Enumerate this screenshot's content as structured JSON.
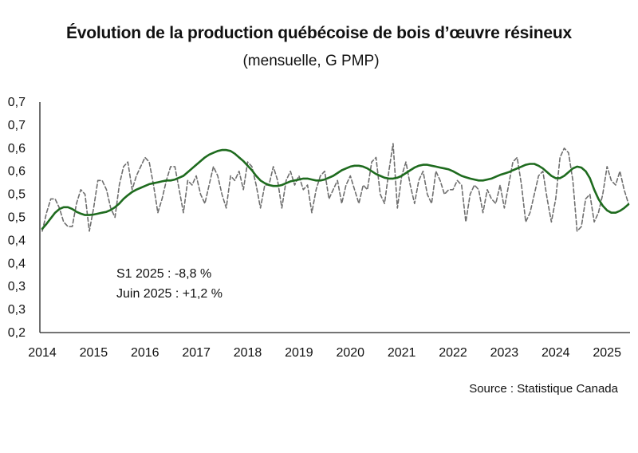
{
  "chart_data": {
    "type": "line",
    "title": "Évolution de la production québécoise de bois d’œuvre résineux",
    "subtitle": "(mensuelle, G PMP)",
    "xlabel": "",
    "ylabel": "",
    "ytick_values": [
      0.2,
      0.25,
      0.3,
      0.35,
      0.4,
      0.45,
      0.5,
      0.55,
      0.6,
      0.65,
      0.7
    ],
    "ytick_labels": [
      "0,2",
      "0,3",
      "0,3",
      "0,4",
      "0,4",
      "0,5",
      "0,5",
      "0,6",
      "0,6",
      "0,7",
      "0,7"
    ],
    "xtick_labels": [
      "2014",
      "2015",
      "2016",
      "2017",
      "2018",
      "2019",
      "2020",
      "2021",
      "2022",
      "2023",
      "2024",
      "2025"
    ],
    "ylim": [
      0.2,
      0.7
    ],
    "xlim": [
      "2014-01",
      "2025-06"
    ],
    "grid": false,
    "legend": "none",
    "annotations": [
      "S1 2025 : -8,8 %",
      "Juin 2025 : +1,2 %"
    ],
    "source": "Source : Statistique Canada",
    "series": [
      {
        "style": "dashed",
        "color": "#6e6e6e",
        "x_start": "2014-01",
        "frequency": "monthly",
        "values": [
          0.42,
          0.46,
          0.49,
          0.49,
          0.47,
          0.44,
          0.43,
          0.43,
          0.48,
          0.51,
          0.5,
          0.42,
          0.47,
          0.53,
          0.53,
          0.51,
          0.47,
          0.45,
          0.52,
          0.56,
          0.57,
          0.51,
          0.54,
          0.56,
          0.58,
          0.57,
          0.52,
          0.46,
          0.49,
          0.53,
          0.56,
          0.56,
          0.51,
          0.46,
          0.53,
          0.52,
          0.54,
          0.5,
          0.48,
          0.52,
          0.56,
          0.54,
          0.5,
          0.47,
          0.54,
          0.53,
          0.55,
          0.51,
          0.57,
          0.56,
          0.52,
          0.47,
          0.52,
          0.52,
          0.56,
          0.53,
          0.47,
          0.53,
          0.55,
          0.52,
          0.54,
          0.51,
          0.52,
          0.46,
          0.51,
          0.54,
          0.55,
          0.49,
          0.51,
          0.53,
          0.48,
          0.52,
          0.54,
          0.51,
          0.48,
          0.52,
          0.51,
          0.57,
          0.58,
          0.5,
          0.48,
          0.55,
          0.61,
          0.47,
          0.54,
          0.57,
          0.52,
          0.48,
          0.53,
          0.55,
          0.5,
          0.48,
          0.55,
          0.53,
          0.5,
          0.51,
          0.51,
          0.53,
          0.52,
          0.44,
          0.5,
          0.52,
          0.51,
          0.46,
          0.51,
          0.49,
          0.48,
          0.52,
          0.47,
          0.52,
          0.57,
          0.58,
          0.52,
          0.44,
          0.46,
          0.5,
          0.54,
          0.55,
          0.49,
          0.44,
          0.49,
          0.58,
          0.6,
          0.59,
          0.53,
          0.42,
          0.43,
          0.49,
          0.5,
          0.44,
          0.46,
          0.5,
          0.56,
          0.53,
          0.52,
          0.55,
          0.51,
          0.48
        ]
      },
      {
        "style": "solid",
        "color": "#1e6b1e",
        "x_start": "2014-01",
        "frequency": "monthly",
        "values": [
          0.425,
          0.436,
          0.448,
          0.46,
          0.468,
          0.472,
          0.472,
          0.468,
          0.462,
          0.458,
          0.455,
          0.455,
          0.456,
          0.458,
          0.46,
          0.462,
          0.466,
          0.472,
          0.48,
          0.49,
          0.498,
          0.505,
          0.51,
          0.514,
          0.518,
          0.522,
          0.524,
          0.526,
          0.528,
          0.53,
          0.53,
          0.532,
          0.536,
          0.54,
          0.548,
          0.556,
          0.564,
          0.572,
          0.58,
          0.586,
          0.59,
          0.594,
          0.596,
          0.596,
          0.594,
          0.588,
          0.58,
          0.572,
          0.562,
          0.552,
          0.54,
          0.53,
          0.524,
          0.52,
          0.518,
          0.518,
          0.52,
          0.524,
          0.528,
          0.53,
          0.532,
          0.534,
          0.534,
          0.532,
          0.53,
          0.53,
          0.532,
          0.536,
          0.54,
          0.546,
          0.552,
          0.556,
          0.56,
          0.562,
          0.562,
          0.56,
          0.556,
          0.55,
          0.544,
          0.54,
          0.536,
          0.534,
          0.534,
          0.536,
          0.54,
          0.546,
          0.552,
          0.558,
          0.562,
          0.564,
          0.564,
          0.562,
          0.56,
          0.558,
          0.556,
          0.554,
          0.55,
          0.545,
          0.54,
          0.537,
          0.534,
          0.532,
          0.53,
          0.53,
          0.532,
          0.534,
          0.538,
          0.542,
          0.545,
          0.548,
          0.552,
          0.556,
          0.56,
          0.564,
          0.566,
          0.566,
          0.562,
          0.556,
          0.548,
          0.54,
          0.535,
          0.535,
          0.54,
          0.548,
          0.556,
          0.56,
          0.558,
          0.55,
          0.535,
          0.51,
          0.49,
          0.475,
          0.465,
          0.46,
          0.46,
          0.464,
          0.47,
          0.478
        ]
      }
    ]
  }
}
